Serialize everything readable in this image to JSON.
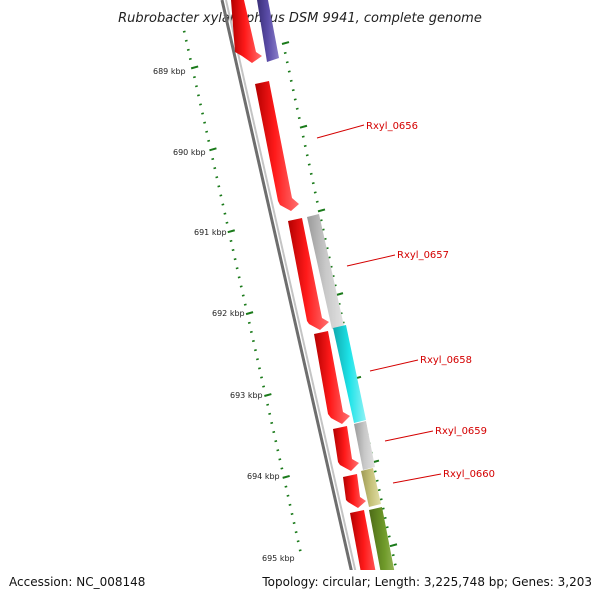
{
  "title": "Rubrobacter xylanophilus DSM 9941, complete genome",
  "accession": "Accession: NC_008148",
  "topology": "Topology: circular; Length: 3,225,748 bp; Genes: 3,203",
  "kbp_labels": [
    "689 kbp",
    "690 kbp",
    "691 kbp",
    "692 kbp",
    "693 kbp",
    "694 kbp",
    "695 kbp"
  ],
  "gene_labels": [
    "Rxyl_0656",
    "Rxyl_0657",
    "Rxyl_0658",
    "Rxyl_0659",
    "Rxyl_0660"
  ],
  "colors": {
    "forward_cds": "#ff0000",
    "reverse_cds": "#4b3f8f",
    "gray_cds": "#bdbdbd",
    "cyan_cds": "#19c9cf",
    "khaki_cds": "#bdb76b",
    "olive_cds": "#6b8e23",
    "backbone": "#8c8c8c",
    "ticks": "#1a7a1a",
    "label": "#d40000"
  }
}
